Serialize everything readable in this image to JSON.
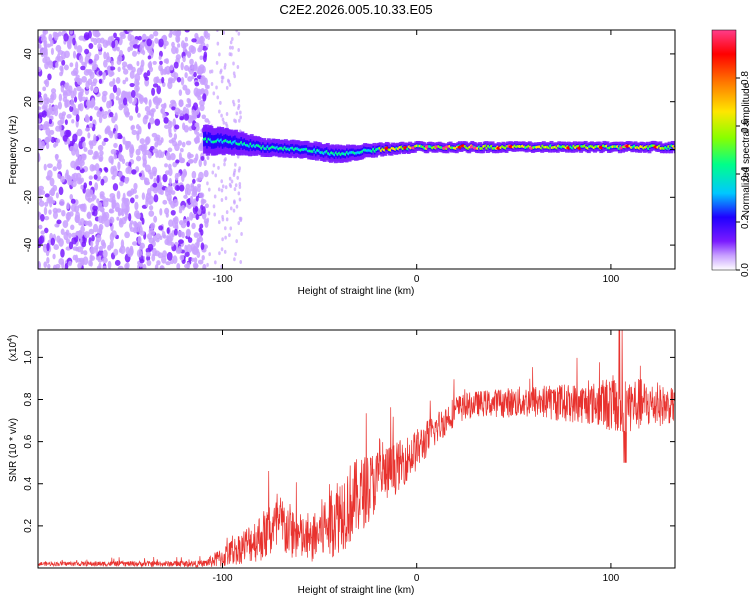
{
  "title": "C2E2.2026.005.10.33.E05",
  "chart_data": [
    {
      "type": "heatmap",
      "title": "C2E2.2026.005.10.33.E05",
      "xlabel": "Height of straight line (km)",
      "ylabel": "Frequency (Hz)",
      "xlim": [
        -195,
        133
      ],
      "ylim": [
        -50,
        50
      ],
      "xticks": [
        -100,
        0,
        100
      ],
      "yticks": [
        -40,
        -20,
        0,
        20,
        40
      ],
      "xtick_labels": [
        "-100",
        "0",
        "100"
      ],
      "ytick_labels": [
        "-40",
        "-20",
        "0",
        "20",
        "40"
      ],
      "colorbar": {
        "label": "Normalized spectral amplitude",
        "range": [
          0,
          1
        ],
        "ticks": [
          0,
          0.2,
          0.4,
          0.6,
          0.8
        ],
        "tick_labels": [
          "0.0",
          "0.2",
          "0.4",
          "0.6",
          "0.8"
        ],
        "colors": [
          "#ffffff",
          "#c8a0ff",
          "#7a1bff",
          "#1f00ff",
          "#00c8ff",
          "#00ff8a",
          "#88ff00",
          "#ffe600",
          "#ff7a00",
          "#ff0000",
          "#ff3c8a"
        ]
      },
      "noise_region": [
        -195,
        -108
      ],
      "sparse_region": [
        -108,
        -90
      ],
      "band_profile": [
        {
          "x": -110,
          "y": 4,
          "width": 12
        },
        {
          "x": -95,
          "y": 3,
          "width": 10
        },
        {
          "x": -80,
          "y": 1,
          "width": 7
        },
        {
          "x": -60,
          "y": 0,
          "width": 7
        },
        {
          "x": -40,
          "y": -2,
          "width": 7
        },
        {
          "x": -20,
          "y": 0,
          "width": 5
        },
        {
          "x": 0,
          "y": 1,
          "width": 4
        },
        {
          "x": 50,
          "y": 1,
          "width": 4
        },
        {
          "x": 133,
          "y": 1,
          "width": 4
        }
      ]
    },
    {
      "type": "line",
      "xlabel": "Height of straight line (km)",
      "ylabel": "SNR (10 * v/v)",
      "y_scale_label": "(x10",
      "y_scale_exp": "4",
      "y_scale_close": ")",
      "xlim": [
        -195,
        133
      ],
      "ylim": [
        0,
        1.13
      ],
      "xticks": [
        -100,
        0,
        100
      ],
      "yticks": [
        0.2,
        0.4,
        0.6,
        0.8,
        1.0
      ],
      "xtick_labels": [
        "-100",
        "0",
        "100"
      ],
      "ytick_labels": [
        "0.2",
        "0.4",
        "0.6",
        "0.8",
        "1.0"
      ],
      "color": "#e8322e",
      "series": [
        {
          "name": "SNR",
          "envelope": [
            {
              "x": -195,
              "mean": 0.02,
              "amp": 0.01
            },
            {
              "x": -110,
              "mean": 0.02,
              "amp": 0.015
            },
            {
              "x": -100,
              "mean": 0.05,
              "amp": 0.05
            },
            {
              "x": -90,
              "mean": 0.1,
              "amp": 0.08
            },
            {
              "x": -80,
              "mean": 0.15,
              "amp": 0.12
            },
            {
              "x": -70,
              "mean": 0.2,
              "amp": 0.15
            },
            {
              "x": -55,
              "mean": 0.12,
              "amp": 0.1
            },
            {
              "x": -45,
              "mean": 0.22,
              "amp": 0.18
            },
            {
              "x": -35,
              "mean": 0.3,
              "amp": 0.2
            },
            {
              "x": -20,
              "mean": 0.42,
              "amp": 0.15
            },
            {
              "x": -10,
              "mean": 0.48,
              "amp": 0.12
            },
            {
              "x": 0,
              "mean": 0.56,
              "amp": 0.1
            },
            {
              "x": 10,
              "mean": 0.66,
              "amp": 0.08
            },
            {
              "x": 20,
              "mean": 0.75,
              "amp": 0.07
            },
            {
              "x": 30,
              "mean": 0.78,
              "amp": 0.06
            },
            {
              "x": 60,
              "mean": 0.79,
              "amp": 0.08
            },
            {
              "x": 90,
              "mean": 0.78,
              "amp": 0.1
            },
            {
              "x": 105,
              "mean": 0.78,
              "amp": 0.15
            },
            {
              "x": 133,
              "mean": 0.77,
              "amp": 0.08
            }
          ]
        }
      ]
    }
  ]
}
